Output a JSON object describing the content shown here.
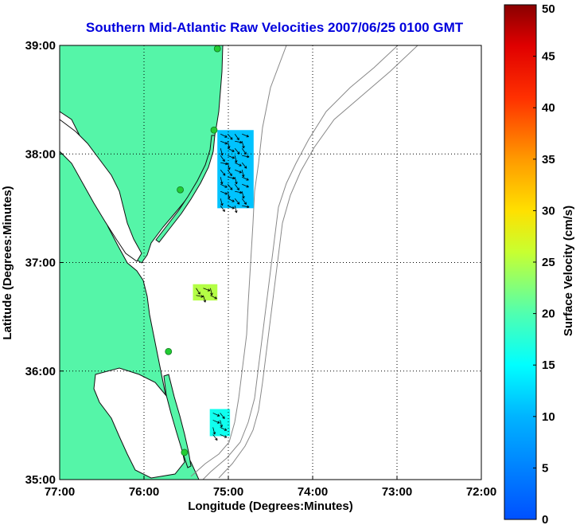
{
  "title": "Southern Mid-Atlantic Raw Velocities 2007/06/25 0100 GMT",
  "colors": {
    "title": "#0000dd",
    "land": "#55f5a8",
    "coast": "#111111",
    "bathymetry": "#888888",
    "station": "#22cc33",
    "grid": "#000000"
  },
  "map": {
    "xlabel": "Longitude (Degrees:Minutes)",
    "ylabel": "Latitude (Degrees:Minutes)",
    "lon_range": [
      -77,
      -72
    ],
    "lat_range": [
      35,
      39
    ],
    "lon_ticks": [
      {
        "value": -77,
        "label": "77:00"
      },
      {
        "value": -76,
        "label": "76:00"
      },
      {
        "value": -75,
        "label": "75:00"
      },
      {
        "value": -74,
        "label": "74:00"
      },
      {
        "value": -73,
        "label": "73:00"
      },
      {
        "value": -72,
        "label": "72:00"
      }
    ],
    "lat_ticks": [
      {
        "value": 39,
        "label": "39:00"
      },
      {
        "value": 38,
        "label": "38:00"
      },
      {
        "value": 37,
        "label": "37:00"
      },
      {
        "value": 36,
        "label": "36:00"
      },
      {
        "value": 35,
        "label": "35:00"
      }
    ],
    "grid": "dotted",
    "stations": [
      {
        "lon": -75.13,
        "lat": 38.97
      },
      {
        "lon": -75.17,
        "lat": 38.22
      },
      {
        "lon": -75.57,
        "lat": 37.67
      },
      {
        "lon": -75.71,
        "lat": 36.18
      },
      {
        "lon": -75.52,
        "lat": 35.25
      }
    ],
    "vector_patches": [
      {
        "lon_min": -75.13,
        "lon_max": -74.7,
        "lat_min": 37.5,
        "lat_max": 38.22,
        "speed": 11
      },
      {
        "lon_min": -75.42,
        "lon_max": -75.13,
        "lat_min": 36.65,
        "lat_max": 36.8,
        "speed": 25
      },
      {
        "lon_min": -75.22,
        "lon_max": -74.98,
        "lat_min": 35.4,
        "lat_max": 35.65,
        "speed": 16
      }
    ]
  },
  "colorbar": {
    "label": "Surface Velocity (cm/s)",
    "min": 0,
    "max": 50,
    "ticks": [
      "0",
      "5",
      "10",
      "15",
      "20",
      "25",
      "30",
      "35",
      "40",
      "45",
      "50"
    ]
  }
}
